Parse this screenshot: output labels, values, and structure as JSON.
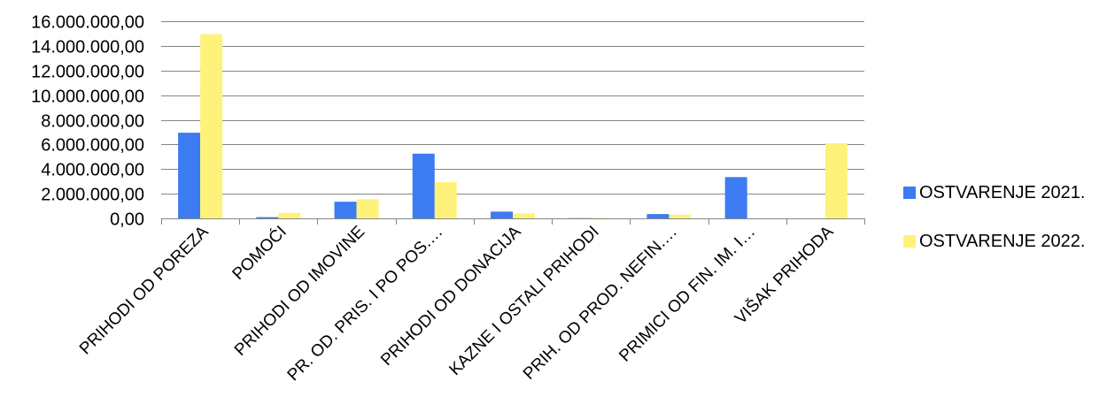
{
  "chart_data": {
    "type": "bar",
    "title": "",
    "xlabel": "",
    "ylabel": "",
    "ylim": [
      0,
      16000000
    ],
    "yticks": [
      {
        "value": 0,
        "label": "0,00"
      },
      {
        "value": 2000000,
        "label": "2.000.000,00"
      },
      {
        "value": 4000000,
        "label": "4.000.000,00"
      },
      {
        "value": 6000000,
        "label": "6.000.000,00"
      },
      {
        "value": 8000000,
        "label": "8.000.000,00"
      },
      {
        "value": 10000000,
        "label": "10.000.000,00"
      },
      {
        "value": 12000000,
        "label": "12.000.000,00"
      },
      {
        "value": 14000000,
        "label": "14.000.000,00"
      },
      {
        "value": 16000000,
        "label": "16.000.000,00"
      }
    ],
    "grid": true,
    "legend_position": "right",
    "categories": [
      "PRIHODI OD POREZA",
      "POMOĆI",
      "PRIHODI OD IMOVINE",
      "PR. OD. PRIS. I PO POS.…",
      "PRIHODI OD DONACIJA",
      "KAZNE I OSTALI PRIHODI",
      "PRIH. OD PROD. NEFIN.…",
      "PRIMICI OD FIN. IM. I…",
      "VIŠAK PRIHODA"
    ],
    "series": [
      {
        "name": "OSTVARENJE 2021.",
        "color": "#3D7BF2",
        "values": [
          6950000,
          100000,
          1350000,
          5250000,
          550000,
          20000,
          350000,
          3350000,
          0
        ]
      },
      {
        "name": "OSTVARENJE 2022.",
        "color": "#FFF27A",
        "values": [
          14950000,
          450000,
          1550000,
          2950000,
          400000,
          30000,
          300000,
          0,
          6100000
        ]
      }
    ]
  }
}
